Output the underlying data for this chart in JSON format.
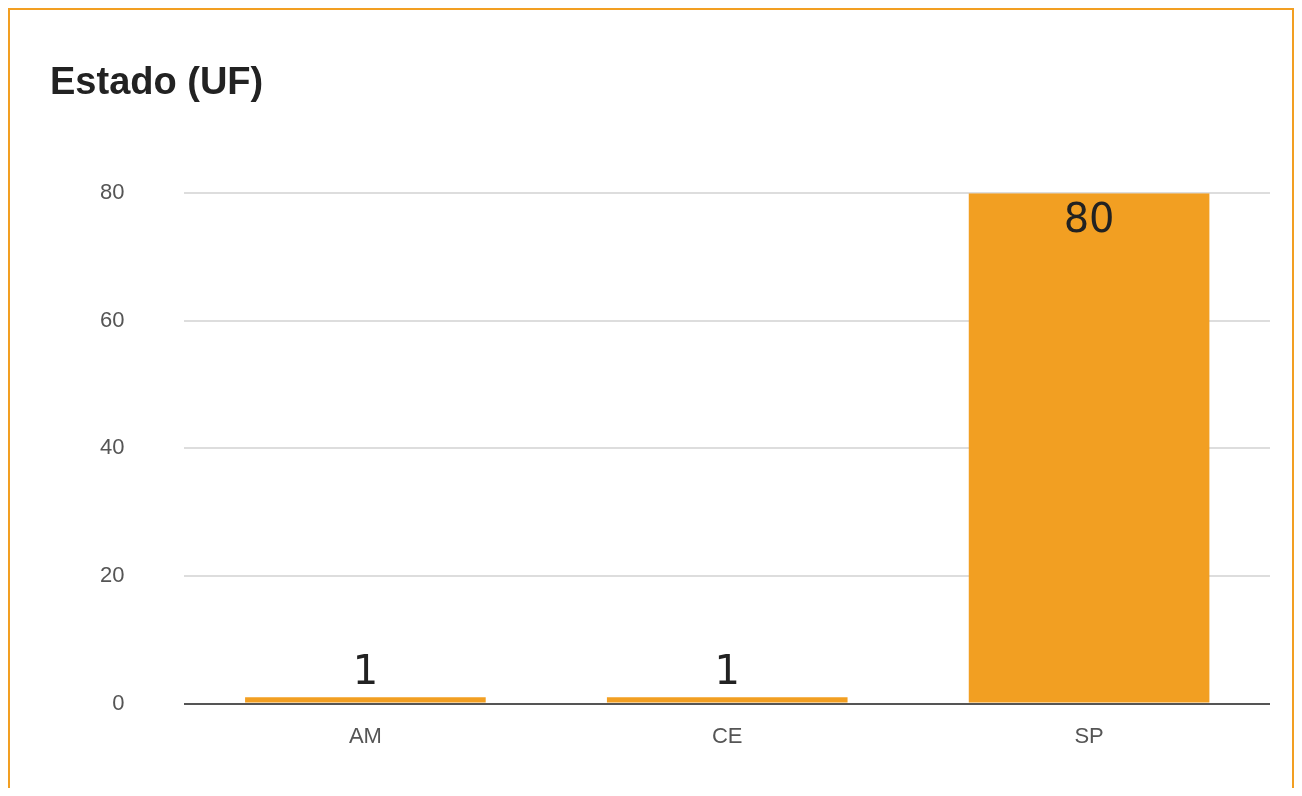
{
  "chart_data": {
    "type": "bar",
    "title": "Estado (UF)",
    "categories": [
      "AM",
      "CE",
      "SP"
    ],
    "values": [
      1,
      1,
      80
    ],
    "color": "#f29f22",
    "ylim": [
      0,
      80
    ],
    "yticks": [
      0,
      20,
      40,
      60,
      80
    ],
    "grid": "y",
    "legend": false,
    "data_labels": true
  }
}
